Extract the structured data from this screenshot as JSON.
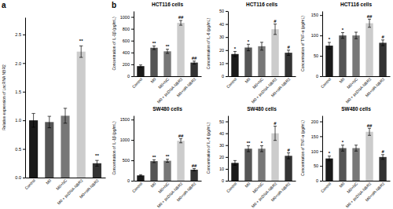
{
  "chart_data": [
    {
      "type": "bar",
      "panel_label": "a",
      "categories": [
        "Control",
        "M0",
        "M0+NC",
        "M0 + pcDNA-NBR2",
        "M0+siR-NBR2"
      ],
      "values": [
        1.0,
        0.97,
        1.08,
        2.2,
        0.25
      ],
      "errors": [
        0.12,
        0.1,
        0.13,
        0.1,
        0.05
      ],
      "colors": [
        "#1a1a1a",
        "#555555",
        "#777777",
        "#cccccc",
        "#333333"
      ],
      "ylabel": "Relative expression of LncRNA NBR2",
      "ylim": [
        0,
        2.8
      ],
      "yticks": [
        {
          "value": 0,
          "label": "0.0"
        },
        0.5,
        {
          "value": 1.0,
          "label": "1.0"
        },
        1.5,
        {
          "value": 2.0,
          "label": "2.0"
        },
        2.5
      ],
      "annotations": [
        null,
        null,
        null,
        "**",
        "**"
      ],
      "grid": false
    },
    {
      "type": "bar",
      "panel_label": "b",
      "title": "HCT116 cells",
      "categories": [
        "Control",
        "M0",
        "M0+NC",
        "M0 + pcDNA-NBR2",
        "M0+siR-NBR2"
      ],
      "values": [
        170,
        480,
        420,
        900,
        230
      ],
      "errors": [
        20,
        30,
        35,
        40,
        25
      ],
      "colors": [
        "#1a1a1a",
        "#555555",
        "#777777",
        "#cccccc",
        "#333333"
      ],
      "ylabel": "Concentration of IL-1β (pg/mL)",
      "ylim": [
        0,
        1100
      ],
      "yticks": [
        0,
        200,
        400,
        600,
        800,
        1000
      ],
      "annotations": [
        null,
        "**",
        "**",
        "##",
        "##"
      ],
      "grid": false
    },
    {
      "type": "bar",
      "title": "HCT116 cells",
      "categories": [
        "Control",
        "M0",
        "M0+NC",
        "M0 + pcDNA-NBR2",
        "M0+siR-NBR2"
      ],
      "values": [
        17,
        22,
        23,
        36,
        18
      ],
      "errors": [
        2,
        2.5,
        3,
        4,
        2
      ],
      "colors": [
        "#1a1a1a",
        "#555555",
        "#777777",
        "#cccccc",
        "#333333"
      ],
      "ylabel": "Concentration of IL-6 (pg/mL)",
      "ylim": [
        0,
        50
      ],
      "yticks": [
        0,
        10,
        20,
        30,
        40,
        50
      ],
      "annotations": [
        "*",
        "*",
        null,
        "#",
        "#"
      ],
      "grid": false
    },
    {
      "type": "bar",
      "title": "HCT116 cells",
      "categories": [
        "Control",
        "M0",
        "M0+NC",
        "M0 + pcDNA-NBR2",
        "M0+siR-NBR2"
      ],
      "values": [
        75,
        100,
        100,
        130,
        82
      ],
      "errors": [
        8,
        7,
        8,
        10,
        7
      ],
      "colors": [
        "#1a1a1a",
        "#555555",
        "#777777",
        "#cccccc",
        "#333333"
      ],
      "ylabel": "Concentration of TNF-α (pg/mL)",
      "ylim": [
        0,
        160
      ],
      "yticks": [
        0,
        50,
        100,
        150
      ],
      "annotations": [
        "*",
        "*",
        null,
        "##",
        "#"
      ],
      "grid": false
    },
    {
      "type": "bar",
      "title": "SW480 cells",
      "categories": [
        "Control",
        "M0",
        "M0+NC",
        "M0 + pcDNA-NBR2",
        "M0+siR-NBR2"
      ],
      "values": [
        130,
        480,
        490,
        980,
        270
      ],
      "errors": [
        18,
        35,
        38,
        50,
        28
      ],
      "colors": [
        "#1a1a1a",
        "#555555",
        "#777777",
        "#cccccc",
        "#333333"
      ],
      "ylabel": "Concentration of IL-1β (pg/mL)",
      "ylim": [
        0,
        1600
      ],
      "yticks": [
        0,
        500,
        1000,
        1500
      ],
      "annotations": [
        null,
        "**",
        "**",
        "##",
        "##"
      ],
      "grid": false
    },
    {
      "type": "bar",
      "title": "SW480 cells",
      "categories": [
        "Control",
        "M0",
        "M0+NC",
        "M0 + pcDNA-NBR2",
        "M0+siR-NBR2"
      ],
      "values": [
        15,
        27,
        27,
        40,
        21
      ],
      "errors": [
        2,
        2.5,
        2.5,
        6,
        2.5
      ],
      "colors": [
        "#1a1a1a",
        "#555555",
        "#777777",
        "#cccccc",
        "#333333"
      ],
      "ylabel": "Concentration of IL-6 (pg/mL)",
      "ylim": [
        0,
        55
      ],
      "yticks": [
        0,
        10,
        20,
        30,
        40,
        50
      ],
      "annotations": [
        null,
        "**",
        "*",
        "#",
        "#"
      ],
      "grid": false
    },
    {
      "type": "bar",
      "title": "SW480 cells",
      "categories": [
        "Control",
        "M0",
        "M0+NC",
        "M0 + pcDNA-NBR2",
        "M0+siR-NBR2"
      ],
      "values": [
        75,
        110,
        110,
        165,
        80
      ],
      "errors": [
        8,
        10,
        10,
        12,
        8
      ],
      "colors": [
        "#1a1a1a",
        "#555555",
        "#777777",
        "#cccccc",
        "#333333"
      ],
      "ylabel": "Concentration of TNF-α (pg/mL)",
      "ylim": [
        0,
        220
      ],
      "yticks": [
        0,
        50,
        100,
        150,
        200
      ],
      "annotations": [
        "*",
        "*",
        null,
        "##",
        "#"
      ],
      "grid": false
    }
  ]
}
